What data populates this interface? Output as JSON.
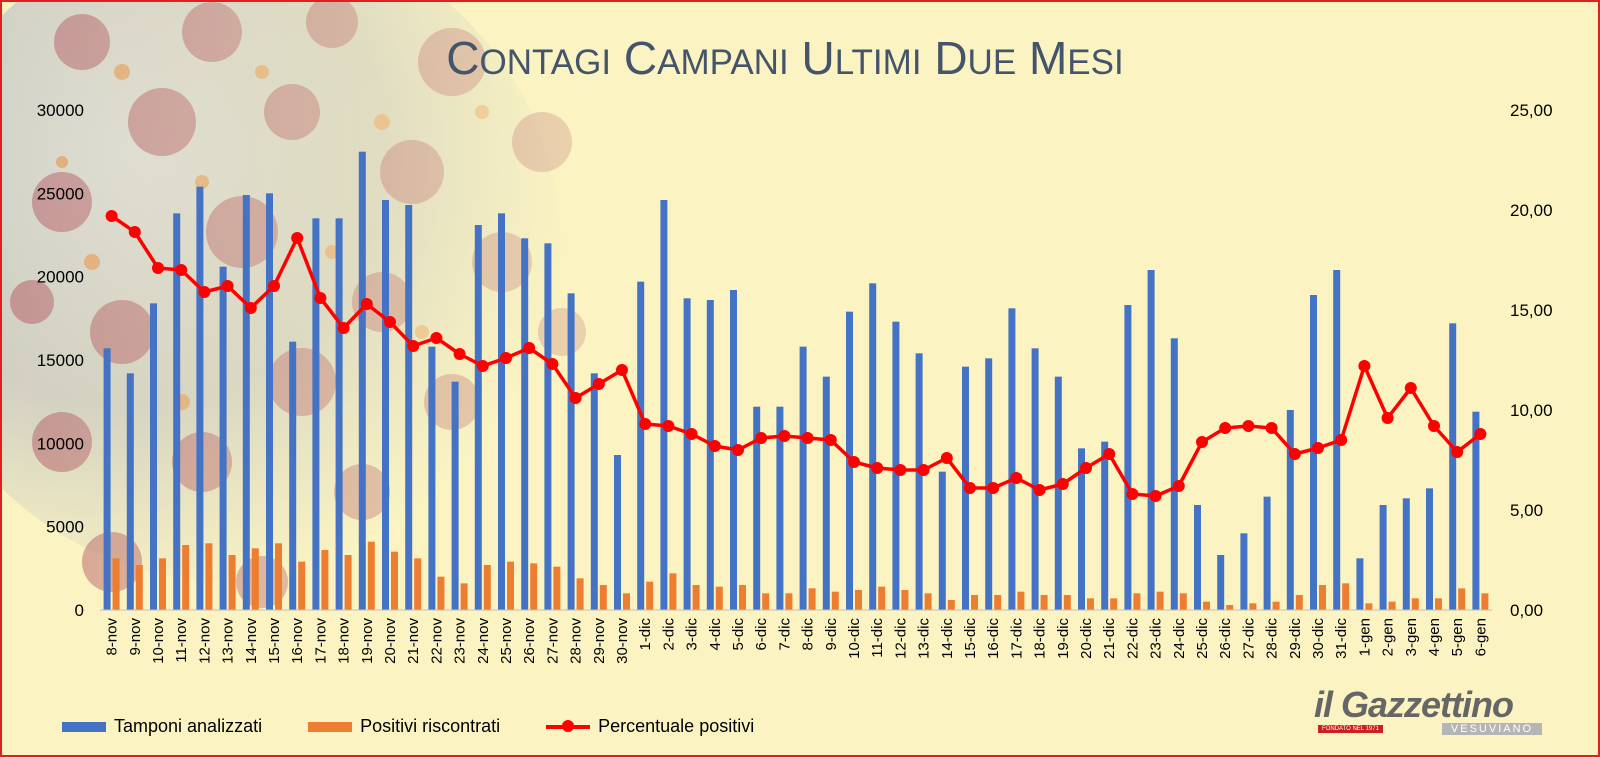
{
  "chart_data": {
    "type": "bar",
    "title": "Contagi Campani ultimi due mesi",
    "categories": [
      "8-nov",
      "9-nov",
      "10-nov",
      "11-nov",
      "12-nov",
      "13-nov",
      "14-nov",
      "15-nov",
      "16-nov",
      "17-nov",
      "18-nov",
      "19-nov",
      "20-nov",
      "21-nov",
      "22-nov",
      "23-nov",
      "24-nov",
      "25-nov",
      "26-nov",
      "27-nov",
      "28-nov",
      "29-nov",
      "30-nov",
      "1-dic",
      "2-dic",
      "3-dic",
      "4-dic",
      "5-dic",
      "6-dic",
      "7-dic",
      "8-dic",
      "9-dic",
      "10-dic",
      "11-dic",
      "12-dic",
      "13-dic",
      "14-dic",
      "15-dic",
      "16-dic",
      "17-dic",
      "18-dic",
      "19-dic",
      "20-dic",
      "21-dic",
      "22-dic",
      "23-dic",
      "24-dic",
      "25-dic",
      "26-dic",
      "27-dic",
      "28-dic",
      "29-dic",
      "30-dic",
      "31-dic",
      "1-gen",
      "2-gen",
      "3-gen",
      "4-gen",
      "5-gen",
      "6-gen"
    ],
    "series": [
      {
        "name": "Tamponi analizzati",
        "type": "bar",
        "axis": "left",
        "color": "#4472c4",
        "values": [
          15700,
          14200,
          18400,
          23800,
          25400,
          20600,
          24900,
          25000,
          16100,
          23500,
          23500,
          27500,
          24600,
          24300,
          15800,
          13700,
          23100,
          23800,
          22300,
          22000,
          19000,
          14200,
          9300,
          19700,
          24600,
          18700,
          18600,
          19200,
          12200,
          12200,
          15800,
          14000,
          17900,
          19600,
          17300,
          15400,
          8300,
          14600,
          15100,
          18100,
          15700,
          14000,
          9700,
          10100,
          18300,
          20400,
          16300,
          6300,
          3300,
          4600,
          6800,
          12000,
          18900,
          20400,
          3100,
          6300,
          6700,
          7300,
          17200,
          11900
        ]
      },
      {
        "name": "Positivi riscontrati",
        "type": "bar",
        "axis": "left",
        "color": "#ed7d31",
        "values": [
          3100,
          2700,
          3100,
          3900,
          4000,
          3300,
          3700,
          4000,
          2900,
          3600,
          3300,
          4100,
          3500,
          3100,
          2000,
          1600,
          2700,
          2900,
          2800,
          2600,
          1900,
          1500,
          1000,
          1700,
          2200,
          1500,
          1400,
          1500,
          1000,
          1000,
          1300,
          1100,
          1200,
          1400,
          1200,
          1000,
          600,
          900,
          900,
          1100,
          900,
          900,
          700,
          700,
          1000,
          1100,
          1000,
          500,
          300,
          400,
          500,
          900,
          1500,
          1600,
          400,
          500,
          700,
          700,
          1300,
          1000
        ]
      },
      {
        "name": "Percentuale positivi",
        "type": "line",
        "axis": "right",
        "color": "#ff0000",
        "values": [
          19.7,
          18.9,
          17.1,
          17.0,
          15.9,
          16.2,
          15.1,
          16.2,
          18.6,
          15.6,
          14.1,
          15.3,
          14.4,
          13.2,
          13.6,
          12.8,
          12.2,
          12.6,
          13.1,
          12.3,
          10.6,
          11.3,
          12.0,
          9.3,
          9.2,
          8.8,
          8.2,
          8.0,
          8.6,
          8.7,
          8.6,
          8.5,
          7.4,
          7.1,
          7.0,
          7.0,
          7.6,
          6.1,
          6.1,
          6.6,
          6.0,
          6.3,
          7.1,
          7.8,
          5.8,
          5.7,
          6.2,
          8.4,
          9.1,
          9.2,
          9.1,
          7.8,
          8.1,
          8.5,
          12.2,
          9.6,
          11.1,
          9.2,
          7.9,
          8.8
        ]
      }
    ],
    "y_left": {
      "min": 0,
      "max": 30000,
      "ticks": [
        "0",
        "5000",
        "10000",
        "15000",
        "20000",
        "25000",
        "30000"
      ]
    },
    "y_right": {
      "min": 0,
      "max": 25,
      "ticks": [
        "0,00",
        "5,00",
        "10,00",
        "15,00",
        "20,00",
        "25,00"
      ]
    },
    "grid": false,
    "legend_position": "bottom-left"
  },
  "colors": {
    "background": "#fbf4c2",
    "border": "#e0201f",
    "title": "#44546a"
  },
  "brand": {
    "name": "il Gazzettino",
    "founded": "FONDATO NEL 1971",
    "subtitle": "VESUVIANO"
  }
}
